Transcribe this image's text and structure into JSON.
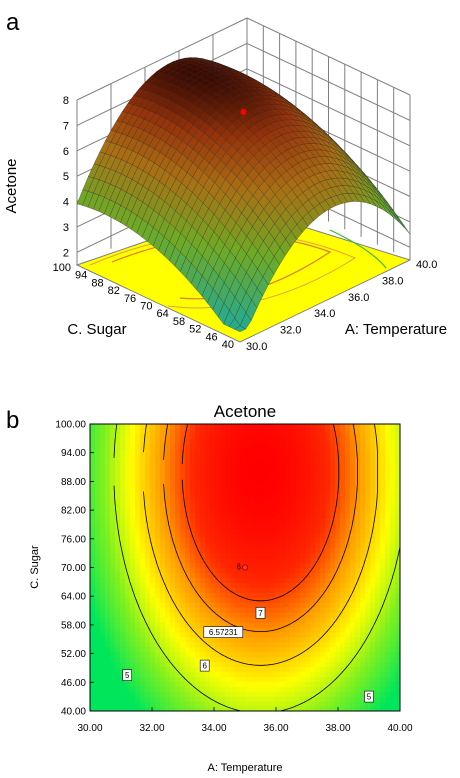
{
  "panels": {
    "a": "a",
    "b": "b"
  },
  "chart_data": [
    {
      "type": "surface",
      "panel": "a",
      "zlabel": "Acetone",
      "xlabel": "A: Temperature",
      "ylabel": "C. Sugar",
      "x_ticks": [
        "30.0",
        "32.0",
        "34.0",
        "36.0",
        "38.0",
        "40.0"
      ],
      "y_ticks": [
        "40",
        "46",
        "52",
        "58",
        "64",
        "70",
        "76",
        "82",
        "88",
        "94",
        "100"
      ],
      "z_ticks": [
        "2",
        "3",
        "4",
        "5",
        "6",
        "7",
        "8"
      ],
      "xlim": [
        30,
        40
      ],
      "ylim": [
        40,
        100
      ],
      "zlim": [
        1.5,
        8
      ],
      "design_point": {
        "x": 35,
        "y": 70,
        "z": 7.4
      },
      "surface_samples": [
        {
          "x": 30,
          "y": 40,
          "z": 4.3
        },
        {
          "x": 30,
          "y": 100,
          "z": 6.1
        },
        {
          "x": 35.5,
          "y": 90,
          "z": 7.8
        },
        {
          "x": 40,
          "y": 40,
          "z": 2.1
        },
        {
          "x": 40,
          "y": 100,
          "z": 5.9
        }
      ]
    },
    {
      "type": "contour",
      "panel": "b",
      "title": "Acetone",
      "xlabel": "A: Temperature",
      "ylabel": "C. Sugar",
      "x_ticks": [
        "30.00",
        "32.00",
        "34.00",
        "36.00",
        "38.00",
        "40.00"
      ],
      "y_ticks": [
        "40.00",
        "46.00",
        "52.00",
        "58.00",
        "64.00",
        "70.00",
        "76.00",
        "82.00",
        "88.00",
        "94.00",
        "100.00"
      ],
      "xlim": [
        30,
        40
      ],
      "ylim": [
        40,
        100
      ],
      "contour_levels": [
        {
          "value": 5,
          "label": "5"
        },
        {
          "value": 6,
          "label": "6"
        },
        {
          "value": 6.57231,
          "label": "6.57231"
        },
        {
          "value": 7,
          "label": "7"
        }
      ],
      "label_positions": [
        {
          "label": "7",
          "x": 35.5,
          "y": 60.5
        },
        {
          "label": "6.57231",
          "x": 34.3,
          "y": 56.5
        },
        {
          "label": "6",
          "x": 33.7,
          "y": 49.5
        },
        {
          "label": "5",
          "x": 31.2,
          "y": 47.5
        },
        {
          "label": "5",
          "x": 39.0,
          "y": 43.0
        }
      ],
      "design_point": {
        "x": 35,
        "y": 70,
        "label": "6"
      }
    }
  ]
}
